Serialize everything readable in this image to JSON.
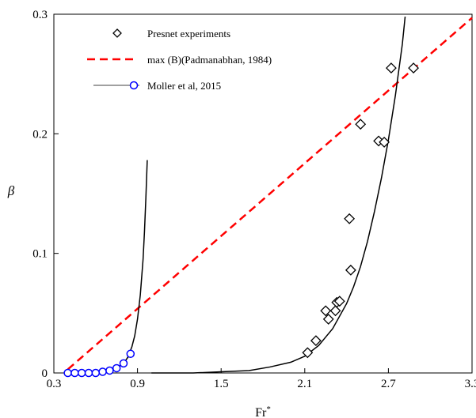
{
  "chart_data": {
    "type": "scatter",
    "title": "",
    "xlabel": "Fr",
    "xlabel_sup": "*",
    "ylabel": "β",
    "xlim": [
      0.3,
      3.3
    ],
    "ylim": [
      0,
      0.3
    ],
    "x_ticks": [
      {
        "value": 0.3,
        "label": "0.3"
      },
      {
        "value": 0.9,
        "label": "0.9"
      },
      {
        "value": 1.5,
        "label": "1.5"
      },
      {
        "value": 2.1,
        "label": "2.1"
      },
      {
        "value": 2.7,
        "label": "2.7"
      },
      {
        "value": 3.3,
        "label": "3.3"
      }
    ],
    "y_ticks": [
      {
        "value": 0,
        "label": "0"
      },
      {
        "value": 0.1,
        "label": "0.1"
      },
      {
        "value": 0.2,
        "label": "0.2"
      },
      {
        "value": 0.3,
        "label": "0.3"
      }
    ],
    "grid": false,
    "legend_position": "top-left",
    "series": [
      {
        "name": "Presnet experiments",
        "kind": "markers",
        "marker": "diamond",
        "color": "#000000",
        "x": [
          2.12,
          2.18,
          2.25,
          2.27,
          2.32,
          2.33,
          2.35,
          2.42,
          2.43,
          2.5,
          2.63,
          2.67,
          2.72,
          2.88
        ],
        "y": [
          0.017,
          0.027,
          0.052,
          0.045,
          0.052,
          0.059,
          0.06,
          0.129,
          0.086,
          0.208,
          0.194,
          0.193,
          0.255,
          0.255
        ]
      },
      {
        "name": "max (B)(Padmanabhan, 1984)",
        "kind": "dashed-line",
        "color": "#ff0000",
        "x": [
          0.4,
          3.3
        ],
        "y": [
          0.003,
          0.297
        ]
      },
      {
        "name": "Moller et al, 2015",
        "kind": "line-markers",
        "marker": "circle",
        "color": "#0000ff",
        "line_color": "#808080",
        "x": [
          0.4,
          0.45,
          0.5,
          0.55,
          0.6,
          0.65,
          0.7,
          0.75,
          0.8,
          0.85
        ],
        "y": [
          0.0,
          0.0,
          0.0,
          0.0,
          0.0,
          0.001,
          0.002,
          0.004,
          0.008,
          0.016
        ]
      },
      {
        "name": "",
        "kind": "curve",
        "color": "#000000",
        "x": [
          0.4,
          0.5,
          0.6,
          0.7,
          0.75,
          0.8,
          0.83,
          0.86,
          0.88,
          0.9,
          0.92,
          0.94,
          0.95,
          0.96,
          0.97
        ],
        "y": [
          0.0,
          0.0,
          0.0,
          0.002,
          0.004,
          0.008,
          0.013,
          0.022,
          0.031,
          0.045,
          0.065,
          0.095,
          0.118,
          0.146,
          0.178
        ]
      },
      {
        "name": "",
        "kind": "curve",
        "color": "#000000",
        "x": [
          1.0,
          1.3,
          1.5,
          1.7,
          1.85,
          2.0,
          2.1,
          2.2,
          2.3,
          2.4,
          2.45,
          2.5,
          2.55,
          2.6,
          2.65,
          2.7,
          2.75,
          2.8,
          2.82
        ],
        "y": [
          0.0,
          0.0,
          0.001,
          0.002,
          0.005,
          0.009,
          0.014,
          0.023,
          0.037,
          0.058,
          0.072,
          0.089,
          0.11,
          0.135,
          0.163,
          0.195,
          0.232,
          0.275,
          0.298
        ]
      }
    ]
  }
}
